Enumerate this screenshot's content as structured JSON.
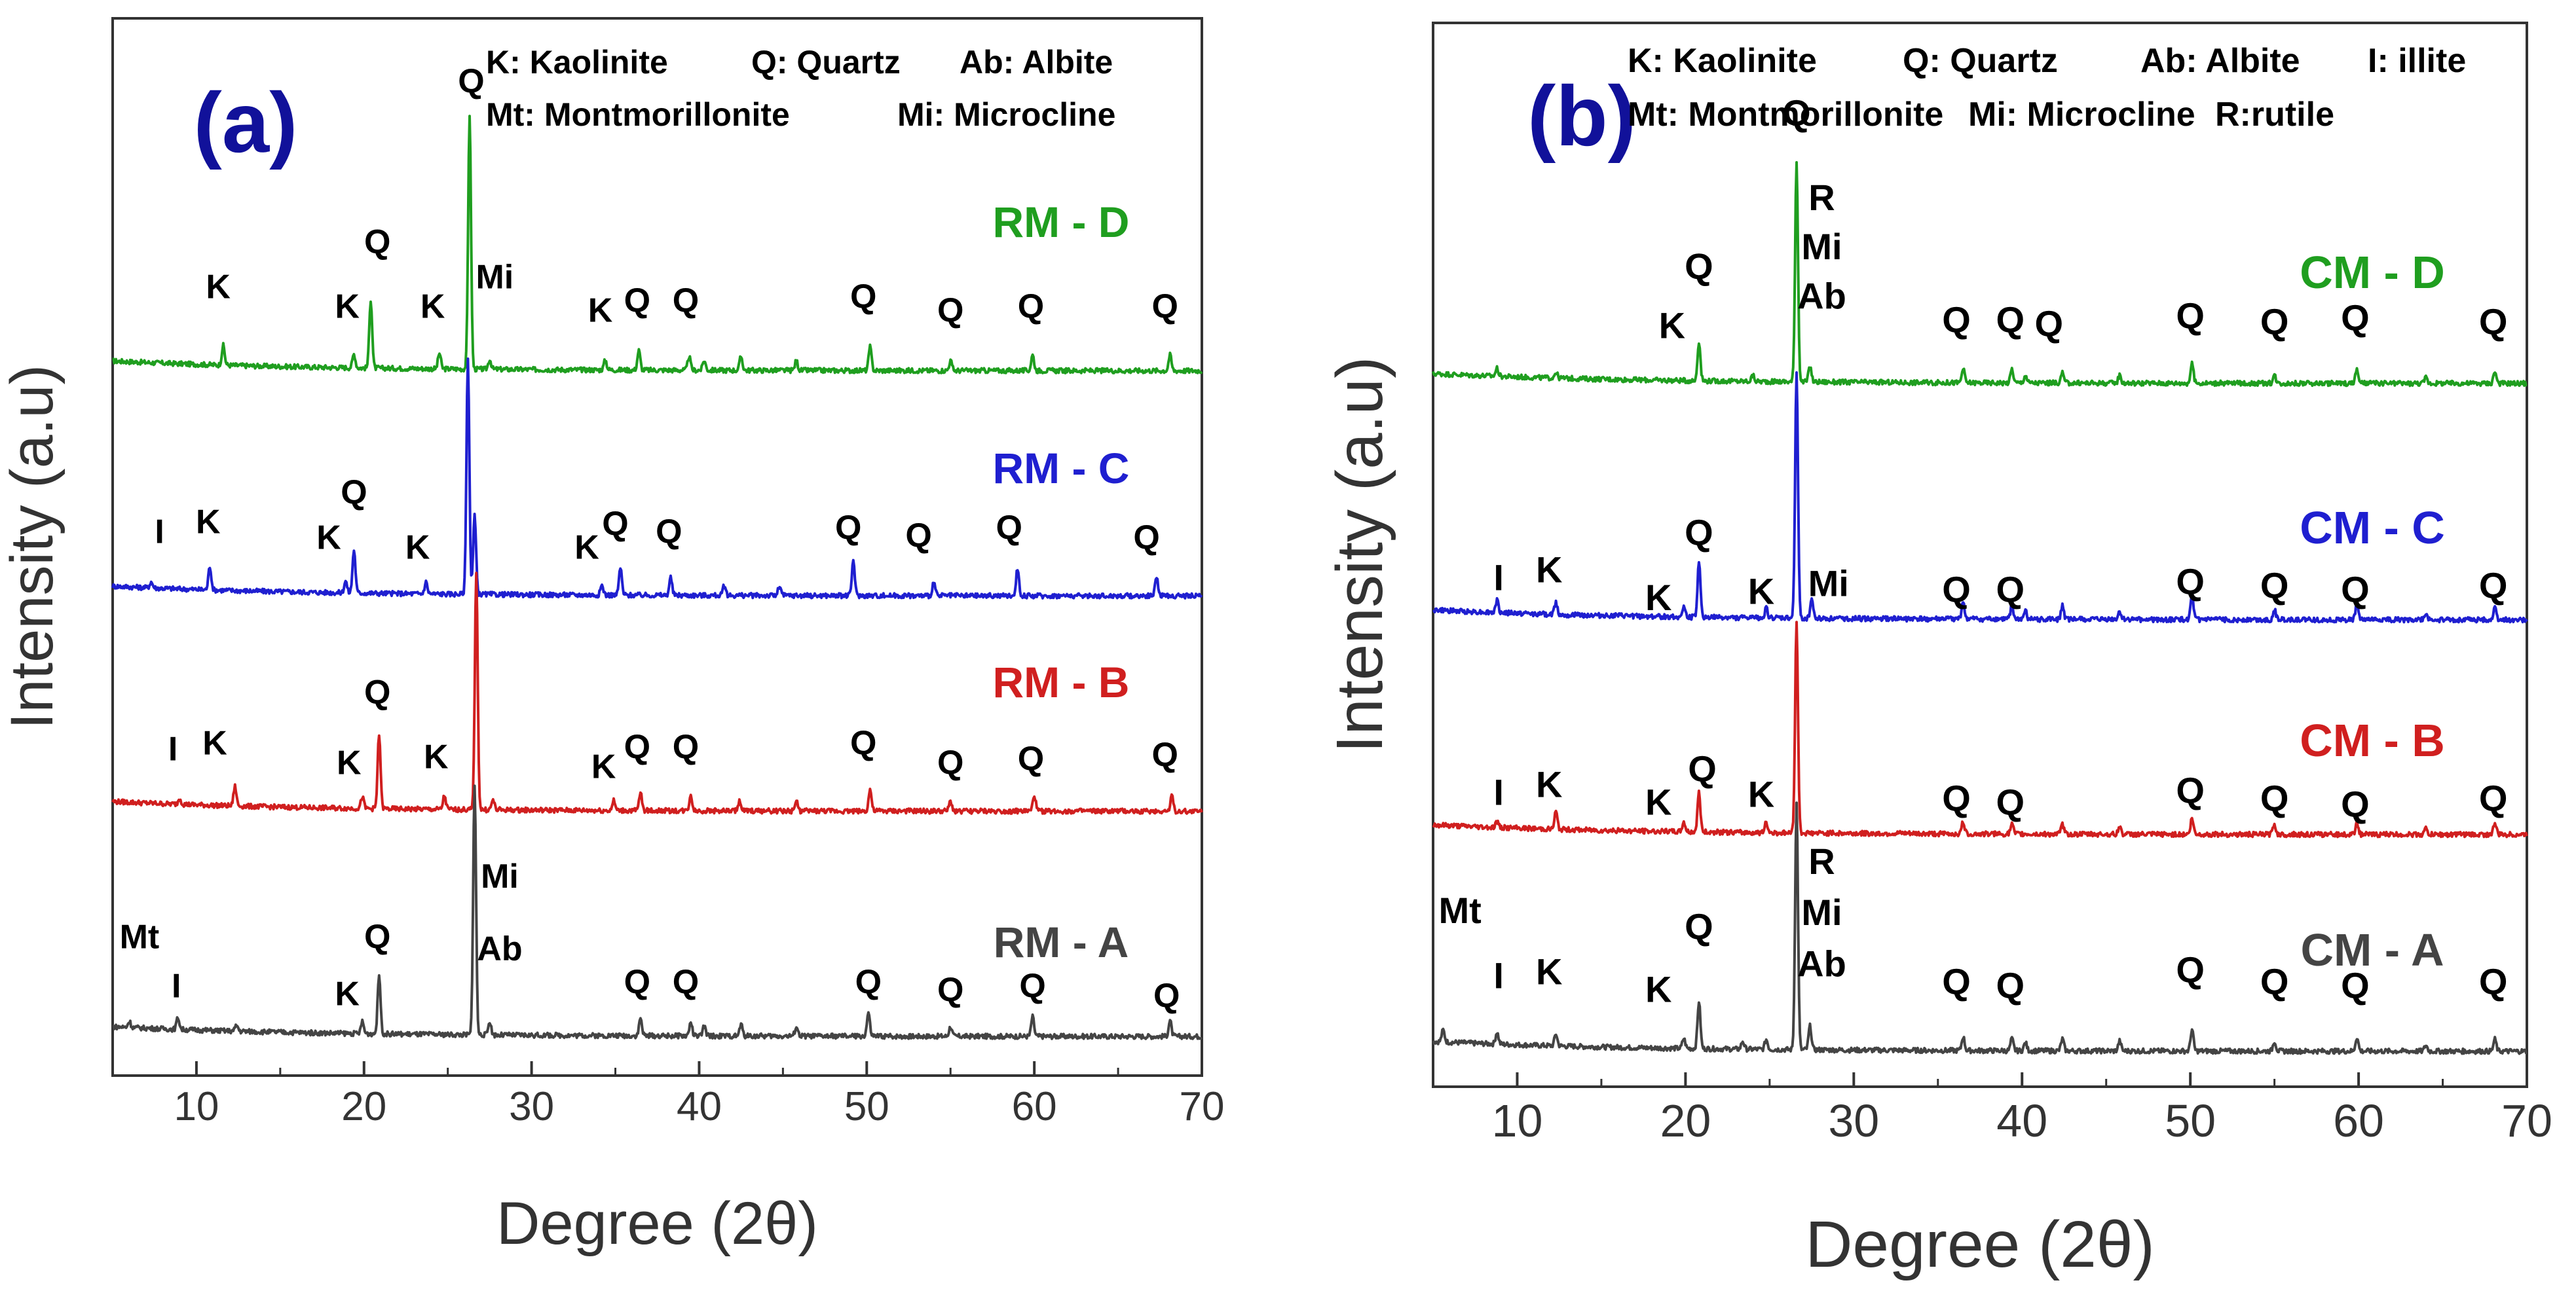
{
  "chart_data": [
    {
      "type": "line",
      "panel_label": "(a)",
      "xlabel": "Degree (2θ)",
      "ylabel": "Intensity (a.u)",
      "xlim": [
        5,
        70
      ],
      "xticks": [
        10,
        20,
        30,
        40,
        50,
        60,
        70
      ],
      "x_tick_labels": [
        "10",
        "20",
        "30",
        "40",
        "50",
        "60",
        "70"
      ],
      "legend": [
        "K: Kaolinite",
        "Q: Quartz",
        "Ab: Albite",
        "Mt: Montmorillonite",
        "Mi: Microcline"
      ],
      "series": [
        {
          "name": "RM - D",
          "color": "#1f9e1f",
          "baseline": 3.6,
          "peaks": [
            [
              11.6,
              0.1
            ],
            [
              19.4,
              0.07
            ],
            [
              20.4,
              0.35
            ],
            [
              24.5,
              0.08
            ],
            [
              26.3,
              1.3
            ],
            [
              27.5,
              0.05
            ],
            [
              34.4,
              0.05
            ],
            [
              36.4,
              0.1
            ],
            [
              39.4,
              0.07
            ],
            [
              40.3,
              0.05
            ],
            [
              42.5,
              0.07
            ],
            [
              45.8,
              0.05
            ],
            [
              50.2,
              0.12
            ],
            [
              55.0,
              0.05
            ],
            [
              59.9,
              0.08
            ],
            [
              68.1,
              0.08
            ]
          ]
        },
        {
          "name": "RM - C",
          "color": "#1f1fd0",
          "baseline": 2.45,
          "peaks": [
            [
              7.3,
              0.03
            ],
            [
              10.8,
              0.12
            ],
            [
              18.9,
              0.06
            ],
            [
              19.4,
              0.22
            ],
            [
              23.7,
              0.06
            ],
            [
              26.2,
              1.2
            ],
            [
              26.6,
              0.4
            ],
            [
              34.2,
              0.05
            ],
            [
              35.3,
              0.14
            ],
            [
              38.3,
              0.09
            ],
            [
              41.5,
              0.05
            ],
            [
              44.8,
              0.05
            ],
            [
              49.2,
              0.18
            ],
            [
              54.0,
              0.07
            ],
            [
              59.0,
              0.14
            ],
            [
              67.3,
              0.1
            ]
          ]
        },
        {
          "name": "RM - B",
          "color": "#d01f1f",
          "baseline": 1.35,
          "peaks": [
            [
              9.0,
              0.03
            ],
            [
              12.3,
              0.1
            ],
            [
              19.9,
              0.06
            ],
            [
              20.9,
              0.38
            ],
            [
              24.8,
              0.07
            ],
            [
              26.7,
              1.2
            ],
            [
              27.7,
              0.05
            ],
            [
              34.9,
              0.05
            ],
            [
              36.5,
              0.09
            ],
            [
              39.5,
              0.08
            ],
            [
              42.4,
              0.05
            ],
            [
              45.8,
              0.05
            ],
            [
              50.2,
              0.11
            ],
            [
              55.0,
              0.05
            ],
            [
              60.0,
              0.08
            ],
            [
              68.2,
              0.08
            ]
          ]
        },
        {
          "name": "RM - A",
          "color": "#444444",
          "baseline": 0.2,
          "peaks": [
            [
              6.0,
              0.03
            ],
            [
              8.9,
              0.06
            ],
            [
              12.4,
              0.03
            ],
            [
              19.9,
              0.06
            ],
            [
              20.9,
              0.3
            ],
            [
              26.6,
              1.28
            ],
            [
              27.5,
              0.07
            ],
            [
              36.5,
              0.09
            ],
            [
              39.5,
              0.07
            ],
            [
              40.3,
              0.05
            ],
            [
              42.5,
              0.06
            ],
            [
              45.8,
              0.05
            ],
            [
              50.1,
              0.12
            ],
            [
              55.0,
              0.05
            ],
            [
              59.9,
              0.1
            ],
            [
              68.1,
              0.08
            ]
          ]
        }
      ],
      "annotations": [
        {
          "text": "Q",
          "x": 26.4,
          "y": 5.02
        },
        {
          "text": "K",
          "x": 11.3,
          "y": 3.97
        },
        {
          "text": "K",
          "x": 19.0,
          "y": 3.87
        },
        {
          "text": "Q",
          "x": 20.8,
          "y": 4.2
        },
        {
          "text": "K",
          "x": 24.1,
          "y": 3.87
        },
        {
          "text": "Mi",
          "x": 27.8,
          "y": 4.02
        },
        {
          "text": "K",
          "x": 34.1,
          "y": 3.85
        },
        {
          "text": "Q",
          "x": 36.3,
          "y": 3.9
        },
        {
          "text": "Q",
          "x": 39.2,
          "y": 3.9
        },
        {
          "text": "Q",
          "x": 49.8,
          "y": 3.92
        },
        {
          "text": "Q",
          "x": 55.0,
          "y": 3.85
        },
        {
          "text": "Q",
          "x": 59.8,
          "y": 3.87
        },
        {
          "text": "Q",
          "x": 67.8,
          "y": 3.87
        },
        {
          "text": "I",
          "x": 7.8,
          "y": 2.72
        },
        {
          "text": "K",
          "x": 10.7,
          "y": 2.77
        },
        {
          "text": "K",
          "x": 17.9,
          "y": 2.69
        },
        {
          "text": "Q",
          "x": 19.4,
          "y": 2.92
        },
        {
          "text": "K",
          "x": 23.2,
          "y": 2.64
        },
        {
          "text": "K",
          "x": 33.3,
          "y": 2.64
        },
        {
          "text": "Q",
          "x": 35.0,
          "y": 2.76
        },
        {
          "text": "Q",
          "x": 38.2,
          "y": 2.72
        },
        {
          "text": "Q",
          "x": 48.9,
          "y": 2.74
        },
        {
          "text": "Q",
          "x": 53.1,
          "y": 2.7
        },
        {
          "text": "Q",
          "x": 58.5,
          "y": 2.74
        },
        {
          "text": "Q",
          "x": 66.7,
          "y": 2.69
        },
        {
          "text": "I",
          "x": 8.6,
          "y": 1.61
        },
        {
          "text": "K",
          "x": 11.1,
          "y": 1.64
        },
        {
          "text": "Q",
          "x": 20.8,
          "y": 1.9
        },
        {
          "text": "K",
          "x": 19.1,
          "y": 1.54
        },
        {
          "text": "K",
          "x": 24.3,
          "y": 1.57
        },
        {
          "text": "K",
          "x": 34.3,
          "y": 1.52
        },
        {
          "text": "Q",
          "x": 36.3,
          "y": 1.62
        },
        {
          "text": "Q",
          "x": 39.2,
          "y": 1.62
        },
        {
          "text": "Q",
          "x": 49.8,
          "y": 1.64
        },
        {
          "text": "Q",
          "x": 55.0,
          "y": 1.54
        },
        {
          "text": "Q",
          "x": 59.8,
          "y": 1.56
        },
        {
          "text": "Q",
          "x": 67.8,
          "y": 1.58
        },
        {
          "text": "Mi",
          "x": 28.1,
          "y": 0.96
        },
        {
          "text": "Ab",
          "x": 28.1,
          "y": 0.59
        },
        {
          "text": "Q",
          "x": 20.8,
          "y": 0.65
        },
        {
          "text": "K",
          "x": 19.0,
          "y": 0.36
        },
        {
          "text": "Mt",
          "x": 6.6,
          "y": 0.65
        },
        {
          "text": "I",
          "x": 8.8,
          "y": 0.4
        },
        {
          "text": "Q",
          "x": 36.3,
          "y": 0.42
        },
        {
          "text": "Q",
          "x": 39.2,
          "y": 0.42
        },
        {
          "text": "Q",
          "x": 50.1,
          "y": 0.42
        },
        {
          "text": "Q",
          "x": 55.0,
          "y": 0.38
        },
        {
          "text": "Q",
          "x": 59.9,
          "y": 0.4
        },
        {
          "text": "Q",
          "x": 67.9,
          "y": 0.35
        }
      ]
    },
    {
      "type": "line",
      "panel_label": "(b)",
      "xlabel": "Degree (2θ)",
      "ylabel": "Intensity (a.u)",
      "xlim": [
        5,
        70
      ],
      "xticks": [
        10,
        20,
        30,
        40,
        50,
        60,
        70
      ],
      "x_tick_labels": [
        "10",
        "20",
        "30",
        "40",
        "50",
        "60",
        "70"
      ],
      "legend": [
        "K: Kaolinite",
        "Q: Quartz",
        "Ab: Albite",
        "I: illite",
        "Mt: Montmorillonite",
        "Mi: Microcline",
        "R:rutile"
      ],
      "series": [
        {
          "name": "CM - D",
          "color": "#1f9e1f",
          "baseline": 3.57,
          "peaks": [
            [
              8.8,
              0.04
            ],
            [
              12.3,
              0.03
            ],
            [
              20.8,
              0.2
            ],
            [
              24.0,
              0.03
            ],
            [
              26.6,
              1.12
            ],
            [
              27.4,
              0.08
            ],
            [
              36.5,
              0.07
            ],
            [
              39.4,
              0.07
            ],
            [
              40.2,
              0.04
            ],
            [
              42.4,
              0.05
            ],
            [
              45.8,
              0.04
            ],
            [
              50.1,
              0.1
            ],
            [
              55.0,
              0.04
            ],
            [
              59.9,
              0.07
            ],
            [
              64.0,
              0.03
            ],
            [
              68.1,
              0.06
            ]
          ]
        },
        {
          "name": "CM - C",
          "color": "#1f1fd0",
          "baseline": 2.37,
          "peaks": [
            [
              8.8,
              0.06
            ],
            [
              12.3,
              0.06
            ],
            [
              19.9,
              0.05
            ],
            [
              20.8,
              0.28
            ],
            [
              24.8,
              0.05
            ],
            [
              26.6,
              1.25
            ],
            [
              27.5,
              0.1
            ],
            [
              36.5,
              0.09
            ],
            [
              39.4,
              0.07
            ],
            [
              40.2,
              0.04
            ],
            [
              42.4,
              0.07
            ],
            [
              45.8,
              0.04
            ],
            [
              50.1,
              0.12
            ],
            [
              55.0,
              0.05
            ],
            [
              59.9,
              0.08
            ],
            [
              64.0,
              0.03
            ],
            [
              68.1,
              0.06
            ]
          ]
        },
        {
          "name": "CM - B",
          "color": "#d01f1f",
          "baseline": 1.28,
          "peaks": [
            [
              8.8,
              0.03
            ],
            [
              12.3,
              0.09
            ],
            [
              19.9,
              0.05
            ],
            [
              20.8,
              0.2
            ],
            [
              24.8,
              0.05
            ],
            [
              26.6,
              1.07
            ],
            [
              36.5,
              0.06
            ],
            [
              39.4,
              0.05
            ],
            [
              42.4,
              0.05
            ],
            [
              45.8,
              0.04
            ],
            [
              50.1,
              0.08
            ],
            [
              55.0,
              0.05
            ],
            [
              59.9,
              0.06
            ],
            [
              64.0,
              0.03
            ],
            [
              68.1,
              0.06
            ]
          ]
        },
        {
          "name": "CM - A",
          "color": "#444444",
          "baseline": 0.18,
          "peaks": [
            [
              5.6,
              0.06
            ],
            [
              8.8,
              0.06
            ],
            [
              12.3,
              0.06
            ],
            [
              19.9,
              0.05
            ],
            [
              20.8,
              0.24
            ],
            [
              23.4,
              0.04
            ],
            [
              24.8,
              0.05
            ],
            [
              26.6,
              1.25
            ],
            [
              27.4,
              0.12
            ],
            [
              36.5,
              0.07
            ],
            [
              39.4,
              0.06
            ],
            [
              40.2,
              0.04
            ],
            [
              42.4,
              0.06
            ],
            [
              45.8,
              0.05
            ],
            [
              50.1,
              0.11
            ],
            [
              55.0,
              0.05
            ],
            [
              59.9,
              0.07
            ],
            [
              64.0,
              0.03
            ],
            [
              68.1,
              0.06
            ]
          ]
        }
      ],
      "annotations": [
        {
          "text": "Q",
          "x": 26.6,
          "y": 4.88
        },
        {
          "text": "R",
          "x": 28.1,
          "y": 4.45
        },
        {
          "text": "Mi",
          "x": 28.1,
          "y": 4.2
        },
        {
          "text": "Ab",
          "x": 28.1,
          "y": 3.95
        },
        {
          "text": "Q",
          "x": 20.8,
          "y": 4.1
        },
        {
          "text": "K",
          "x": 19.2,
          "y": 3.8
        },
        {
          "text": "Q",
          "x": 36.1,
          "y": 3.83
        },
        {
          "text": "Q",
          "x": 39.3,
          "y": 3.83
        },
        {
          "text": "Q",
          "x": 41.6,
          "y": 3.81
        },
        {
          "text": "Q",
          "x": 50.0,
          "y": 3.85
        },
        {
          "text": "Q",
          "x": 55.0,
          "y": 3.82
        },
        {
          "text": "Q",
          "x": 59.8,
          "y": 3.84
        },
        {
          "text": "Q",
          "x": 68.0,
          "y": 3.82
        },
        {
          "text": "I",
          "x": 8.9,
          "y": 2.52
        },
        {
          "text": "K",
          "x": 11.9,
          "y": 2.56
        },
        {
          "text": "K",
          "x": 18.4,
          "y": 2.42
        },
        {
          "text": "Q",
          "x": 20.8,
          "y": 2.75
        },
        {
          "text": "K",
          "x": 24.5,
          "y": 2.45
        },
        {
          "text": "Mi",
          "x": 28.5,
          "y": 2.49
        },
        {
          "text": "Q",
          "x": 36.1,
          "y": 2.46
        },
        {
          "text": "Q",
          "x": 39.3,
          "y": 2.46
        },
        {
          "text": "Q",
          "x": 50.0,
          "y": 2.5
        },
        {
          "text": "Q",
          "x": 55.0,
          "y": 2.48
        },
        {
          "text": "Q",
          "x": 59.8,
          "y": 2.46
        },
        {
          "text": "Q",
          "x": 68.0,
          "y": 2.48
        },
        {
          "text": "I",
          "x": 8.9,
          "y": 1.43
        },
        {
          "text": "K",
          "x": 11.9,
          "y": 1.47
        },
        {
          "text": "K",
          "x": 18.4,
          "y": 1.38
        },
        {
          "text": "Q",
          "x": 21.0,
          "y": 1.55
        },
        {
          "text": "K",
          "x": 24.5,
          "y": 1.42
        },
        {
          "text": "Q",
          "x": 36.1,
          "y": 1.4
        },
        {
          "text": "Q",
          "x": 39.3,
          "y": 1.38
        },
        {
          "text": "Q",
          "x": 50.0,
          "y": 1.44
        },
        {
          "text": "Q",
          "x": 55.0,
          "y": 1.4
        },
        {
          "text": "Q",
          "x": 59.8,
          "y": 1.37
        },
        {
          "text": "Q",
          "x": 68.0,
          "y": 1.4
        },
        {
          "text": "R",
          "x": 28.1,
          "y": 1.08
        },
        {
          "text": "Mi",
          "x": 28.1,
          "y": 0.82
        },
        {
          "text": "Ab",
          "x": 28.1,
          "y": 0.56
        },
        {
          "text": "Q",
          "x": 20.8,
          "y": 0.75
        },
        {
          "text": "K",
          "x": 18.4,
          "y": 0.43
        },
        {
          "text": "Mt",
          "x": 6.6,
          "y": 0.83
        },
        {
          "text": "I",
          "x": 8.9,
          "y": 0.5
        },
        {
          "text": "K",
          "x": 11.9,
          "y": 0.52
        },
        {
          "text": "Q",
          "x": 36.1,
          "y": 0.47
        },
        {
          "text": "Q",
          "x": 39.3,
          "y": 0.45
        },
        {
          "text": "Q",
          "x": 50.0,
          "y": 0.53
        },
        {
          "text": "Q",
          "x": 55.0,
          "y": 0.47
        },
        {
          "text": "Q",
          "x": 59.8,
          "y": 0.45
        },
        {
          "text": "Q",
          "x": 68.0,
          "y": 0.47
        }
      ]
    }
  ],
  "colors": {
    "panel_label": "#11119a",
    "axis": "#333333",
    "annotation": "#000000"
  }
}
